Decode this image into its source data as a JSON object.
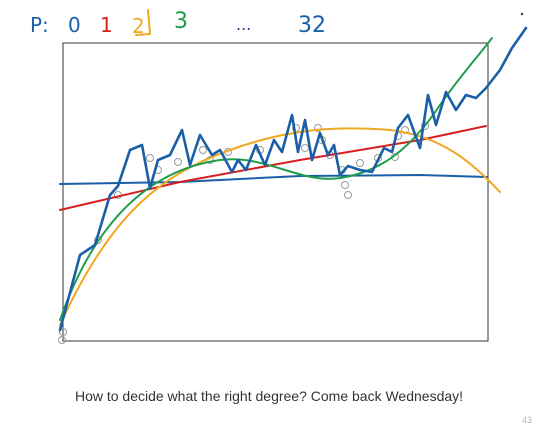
{
  "annotations": {
    "p_label": "P:",
    "degrees": [
      {
        "text": "0",
        "color": "#1a5fa8"
      },
      {
        "text": "1",
        "color": "#d62020"
      },
      {
        "text": "2",
        "color": "#f0a820"
      },
      {
        "text": "3",
        "color": "#1e9e4a"
      },
      {
        "text": "...",
        "color": "#1a3f8a"
      },
      {
        "text": "32",
        "color": "#1a5fa8"
      }
    ]
  },
  "caption": "How to decide what the right degree? Come back Wednesday!",
  "page_number": "43",
  "colors": {
    "degree0": "#1a5fa8",
    "degree1": "#d62020",
    "degree2": "#f0a820",
    "degree3": "#1e9e4a",
    "degree32": "#1a5fa8",
    "points": "#9a9a9a",
    "frame": "#333333"
  }
}
